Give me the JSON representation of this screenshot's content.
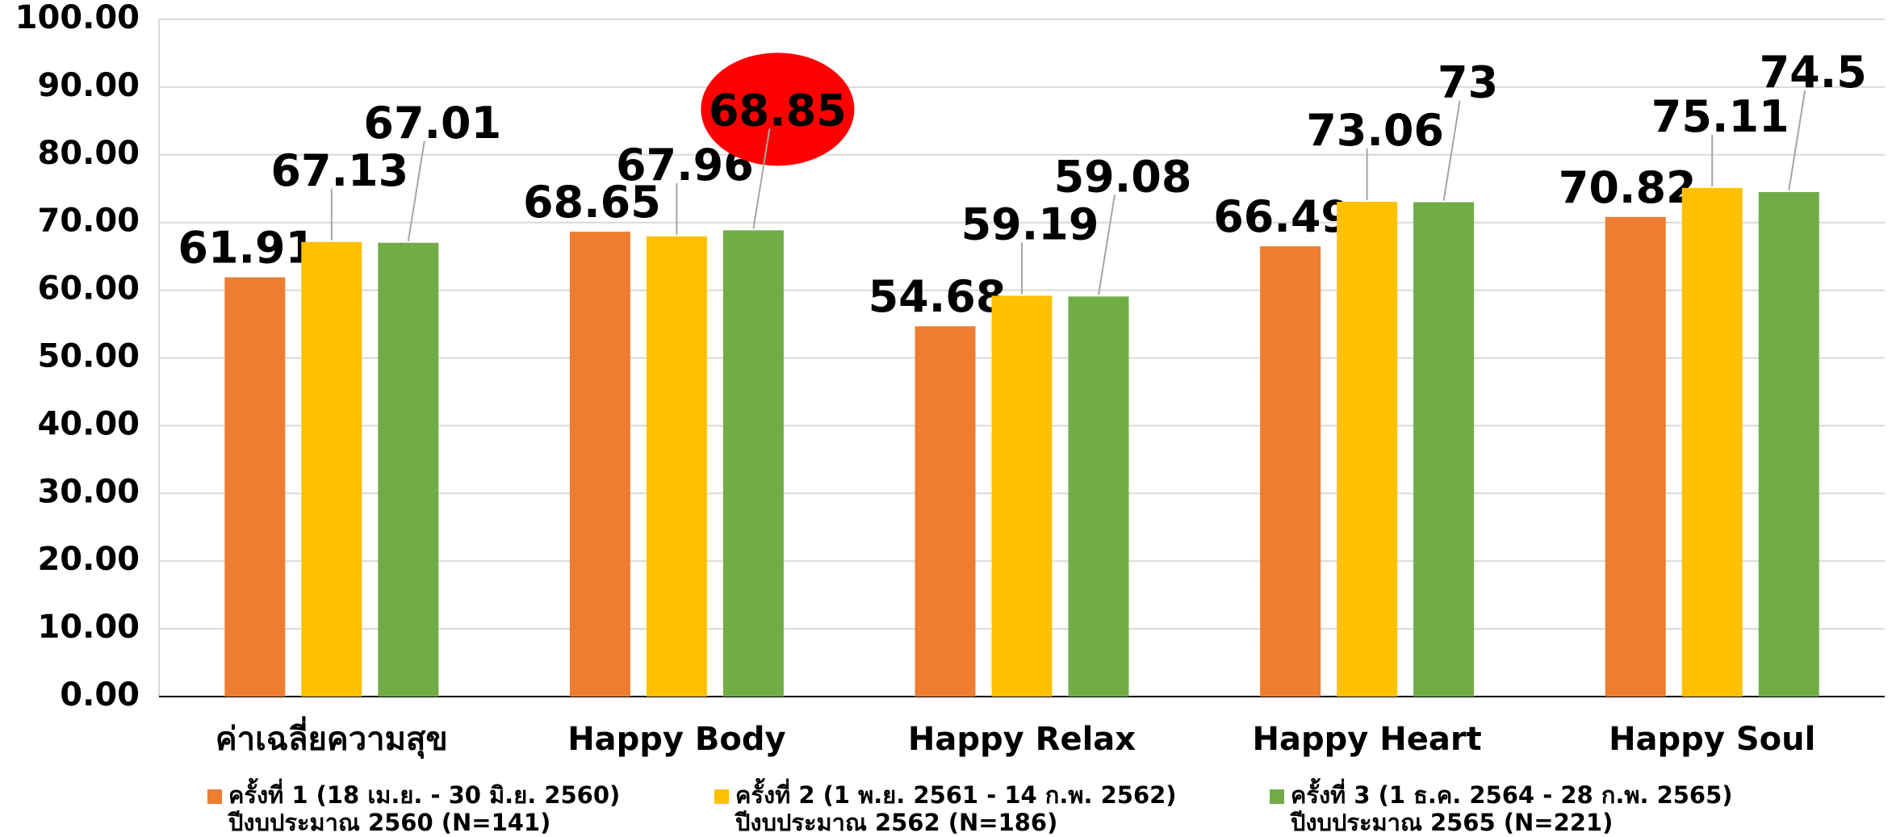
{
  "chart_data": {
    "type": "bar",
    "categories": [
      "ค่าเฉลี่ยความสุข",
      "Happy Body",
      "Happy Relax",
      "Happy Heart",
      "Happy Soul"
    ],
    "series": [
      {
        "name": "ครั้งที่ 1 (18 เม.ย. - 30 มิ.ย. 2560)\nปีงบประมาณ 2560 (N=141)",
        "color": "#ed7d31",
        "values": [
          61.91,
          68.65,
          54.68,
          66.49,
          70.82
        ]
      },
      {
        "name": "ครั้งที่ 2 (1 พ.ย. 2561 - 14 ก.พ. 2562)\nปีงบประมาณ 2562 (N=186)",
        "color": "#ffc000",
        "values": [
          67.13,
          67.96,
          59.19,
          73.06,
          75.11
        ]
      },
      {
        "name": "ครั้งที่ 3 (1 ธ.ค. 2564 - 28 ก.พ. 2565)\nปีงบประมาณ 2565 (N=221)",
        "color": "#70ad47",
        "values": [
          67.01,
          68.85,
          59.08,
          73,
          74.5
        ]
      }
    ],
    "ylim": [
      0,
      100
    ],
    "yticks": [
      {
        "value": 0,
        "label": "0.00"
      },
      {
        "value": 10,
        "label": "10.00"
      },
      {
        "value": 20,
        "label": "20.00"
      },
      {
        "value": 30,
        "label": "30.00"
      },
      {
        "value": 40,
        "label": "40.00"
      },
      {
        "value": 50,
        "label": "50.00"
      },
      {
        "value": 60,
        "label": "60.00"
      },
      {
        "value": 70,
        "label": "70.00"
      },
      {
        "value": 80,
        "label": "80.00"
      },
      {
        "value": 90,
        "label": "90.00"
      },
      {
        "value": 100,
        "label": "100.00"
      }
    ],
    "grid": true,
    "legend": "bottom"
  }
}
